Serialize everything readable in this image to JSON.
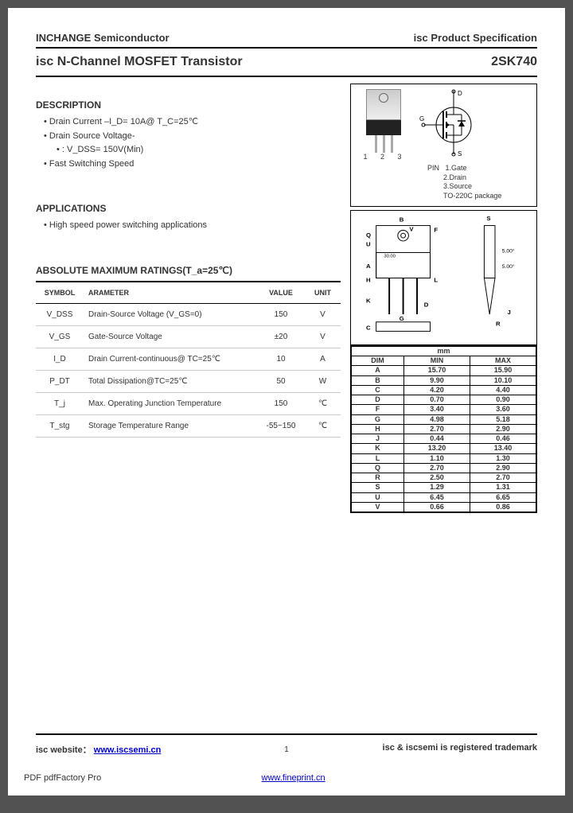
{
  "header": {
    "left": "INCHANGE Semiconductor",
    "right": "isc Product Specification"
  },
  "title": {
    "left": "isc N-Channel MOSFET Transistor",
    "right": "2SK740"
  },
  "description": {
    "heading": "DESCRIPTION",
    "items": [
      "Drain Current –I_D= 10A@ T_C=25℃",
      "Drain Source Voltage-",
      "Fast Switching Speed"
    ],
    "sub": ": V_DSS= 150V(Min)"
  },
  "applications": {
    "heading": "APPLICATIONS",
    "items": [
      "High speed power switching applications"
    ]
  },
  "ratings": {
    "heading": "ABSOLUTE MAXIMUM RATINGS(T_a=25℃)",
    "columns": [
      "SYMBOL",
      "ARAMETER",
      "VALUE",
      "UNIT"
    ],
    "rows": [
      [
        "V_DSS",
        "Drain-Source Voltage (V_GS=0)",
        "150",
        "V"
      ],
      [
        "V_GS",
        "Gate-Source Voltage",
        "±20",
        "V"
      ],
      [
        "I_D",
        "Drain Current-continuous@ TC=25℃",
        "10",
        "A"
      ],
      [
        "P_DT",
        "Total Dissipation@TC=25℃",
        "50",
        "W"
      ],
      [
        "T_j",
        "Max. Operating Junction Temperature",
        "150",
        "℃"
      ],
      [
        "T_stg",
        "Storage Temperature Range",
        "-55~150",
        "℃"
      ]
    ]
  },
  "package": {
    "pins_label": "1  2  3",
    "pin_header": "PIN",
    "pins": [
      "1.Gate",
      "2.Drain",
      "3.Source"
    ],
    "pkg_name": "TO-220C package",
    "terminals": {
      "G": "G",
      "D": "D",
      "S": "S"
    }
  },
  "dimensions": {
    "unit_label": "mm",
    "columns": [
      "DIM",
      "MIN",
      "MAX"
    ],
    "rows": [
      [
        "A",
        "15.70",
        "15.90"
      ],
      [
        "B",
        "9.90",
        "10.10"
      ],
      [
        "C",
        "4.20",
        "4.40"
      ],
      [
        "D",
        "0.70",
        "0.90"
      ],
      [
        "F",
        "3.40",
        "3.60"
      ],
      [
        "G",
        "4.98",
        "5.18"
      ],
      [
        "H",
        "2.70",
        "2.90"
      ],
      [
        "J",
        "0.44",
        "0.46"
      ],
      [
        "K",
        "13.20",
        "13.40"
      ],
      [
        "L",
        "1.10",
        "1.30"
      ],
      [
        "Q",
        "2.70",
        "2.90"
      ],
      [
        "R",
        "2.50",
        "2.70"
      ],
      [
        "S",
        "1.29",
        "1.31"
      ],
      [
        "U",
        "6.45",
        "6.65"
      ],
      [
        "V",
        "0.66",
        "0.86"
      ]
    ]
  },
  "footer": {
    "left_label": "isc website：",
    "url1": "www.iscsemi.cn",
    "right": "isc & iscsemi is registered trademark"
  },
  "bottom": {
    "left": "PDF pdfFactory Pro",
    "url": "www.fineprint.cn"
  },
  "page_num": "1"
}
